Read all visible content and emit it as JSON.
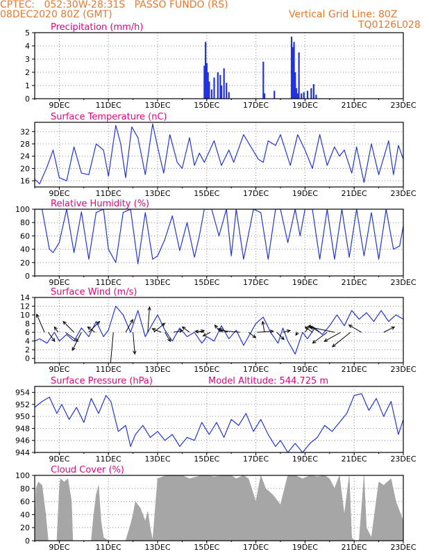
{
  "header": {
    "left_line1": "CPTEC:   052:30W-28:31S   PASSO FUNDO (RS)",
    "left_line2": "08DEC2020 80Z (GMT)",
    "right_line1": "Vertical Grid Line: 80Z",
    "right_line2": "TQ0126L028"
  },
  "colors": {
    "header": "#e8772e",
    "panel_title": "#e6007e",
    "series_line": "#2233dd",
    "precip_bar": "#2233dd",
    "cloud_fill": "#a6a6a6",
    "wind_arrow": "#000000"
  },
  "x_tick_labels": [
    "9DEC",
    "11DEC",
    "13DEC",
    "15DEC",
    "17DEC",
    "19DEC",
    "21DEC",
    "23DEC"
  ],
  "chart_data": [
    {
      "type": "bar",
      "title": "Precipitation (mm/h)",
      "xlim": [
        8.0,
        23.0
      ],
      "ylim": [
        0,
        5
      ],
      "yticks": [
        0,
        1,
        2,
        3,
        4,
        5
      ],
      "grid": true,
      "x": [
        14.9,
        14.95,
        15.0,
        15.05,
        15.1,
        15.2,
        15.3,
        15.45,
        15.55,
        15.6,
        15.7,
        15.8,
        15.9,
        17.3,
        17.35,
        17.75,
        18.45,
        18.5,
        18.55,
        18.6,
        18.65,
        18.7,
        18.75,
        18.85,
        18.95,
        19.1,
        19.25,
        19.35,
        19.45
      ],
      "values": [
        2.5,
        4.3,
        2.7,
        2.0,
        1.3,
        0.7,
        1.6,
        2.0,
        1.8,
        1.0,
        2.3,
        1.2,
        0.5,
        2.8,
        0.4,
        0.6,
        4.7,
        3.9,
        4.3,
        2.0,
        0.8,
        0.4,
        3.5,
        0.4,
        0.5,
        0.6,
        0.8,
        1.1,
        0.3
      ]
    },
    {
      "type": "line",
      "title": "Surface Temperature (nC)",
      "xlim": [
        8.0,
        23.0
      ],
      "ylim": [
        14,
        35
      ],
      "yticks": [
        16,
        20,
        24,
        28,
        32
      ],
      "grid": true,
      "x": [
        8.0,
        8.2,
        8.5,
        8.75,
        9.0,
        9.3,
        9.6,
        9.9,
        10.2,
        10.5,
        10.8,
        11.0,
        11.3,
        11.5,
        11.7,
        11.95,
        12.2,
        12.5,
        12.8,
        13.0,
        13.25,
        13.5,
        13.8,
        14.0,
        14.3,
        14.5,
        14.7,
        14.9,
        15.3,
        15.6,
        15.9,
        16.1,
        16.5,
        16.8,
        17.1,
        17.3,
        17.5,
        17.8,
        18.0,
        18.4,
        18.7,
        19.0,
        19.3,
        19.6,
        19.9,
        20.2,
        20.4,
        20.6,
        20.9,
        21.1,
        21.4,
        21.7,
        22.0,
        22.4,
        22.6,
        22.8,
        23.0
      ],
      "values": [
        16.5,
        15.0,
        20.5,
        26.0,
        17.0,
        16.0,
        27.0,
        18.5,
        18.0,
        28.0,
        26.0,
        17.5,
        34.0,
        28.0,
        17.0,
        33.5,
        30.0,
        18.0,
        34.5,
        27.0,
        18.5,
        31.0,
        22.0,
        20.0,
        30.0,
        21.0,
        25.0,
        22.0,
        29.0,
        21.0,
        26.0,
        22.0,
        31.0,
        27.0,
        23.0,
        22.0,
        29.0,
        27.5,
        31.0,
        21.0,
        31.0,
        26.0,
        20.0,
        31.0,
        21.0,
        27.0,
        24.0,
        26.0,
        18.5,
        27.0,
        15.5,
        28.0,
        18.0,
        29.0,
        18.0,
        27.5,
        23.0
      ]
    },
    {
      "type": "line",
      "title": "Relative Humidity (%)",
      "xlim": [
        8.0,
        23.0
      ],
      "ylim": [
        0,
        100
      ],
      "yticks": [
        0,
        20,
        40,
        60,
        80,
        100
      ],
      "grid": true,
      "x": [
        8.0,
        8.3,
        8.6,
        8.75,
        9.0,
        9.3,
        9.6,
        9.9,
        10.2,
        10.5,
        10.8,
        11.0,
        11.3,
        11.6,
        11.9,
        12.2,
        12.5,
        12.8,
        13.0,
        13.3,
        13.6,
        13.9,
        14.2,
        14.5,
        14.7,
        14.9,
        15.2,
        15.5,
        15.8,
        16.0,
        16.2,
        16.5,
        16.9,
        17.2,
        17.5,
        17.8,
        18.0,
        18.3,
        18.6,
        18.8,
        19.0,
        19.3,
        19.6,
        19.9,
        20.2,
        20.5,
        20.8,
        21.1,
        21.4,
        21.7,
        22.0,
        22.3,
        22.6,
        22.85,
        23.0
      ],
      "values": [
        100,
        100,
        40,
        35,
        50,
        100,
        35,
        96,
        25,
        95,
        100,
        40,
        20,
        95,
        100,
        18,
        95,
        25,
        30,
        55,
        90,
        38,
        80,
        28,
        60,
        100,
        100,
        60,
        100,
        30,
        100,
        25,
        100,
        95,
        25,
        100,
        100,
        50,
        100,
        60,
        100,
        100,
        25,
        100,
        25,
        100,
        28,
        100,
        30,
        95,
        25,
        100,
        40,
        45,
        75
      ]
    },
    {
      "type": "line",
      "title": "Surface Wind (m/s)",
      "xlim": [
        8.0,
        23.0
      ],
      "ylim": [
        -1,
        14
      ],
      "yticks": [
        0,
        2,
        4,
        6,
        8,
        10,
        12,
        14
      ],
      "grid": true,
      "x": [
        8.0,
        8.2,
        8.5,
        8.8,
        9.0,
        9.3,
        9.6,
        9.9,
        10.2,
        10.5,
        10.8,
        11.0,
        11.3,
        11.6,
        11.9,
        12.2,
        12.5,
        12.8,
        13.0,
        13.3,
        13.6,
        13.9,
        14.2,
        14.5,
        14.8,
        15.0,
        15.3,
        15.6,
        15.9,
        16.2,
        16.5,
        16.8,
        17.0,
        17.3,
        17.6,
        17.9,
        18.1,
        18.3,
        18.6,
        18.9,
        19.1,
        19.4,
        19.7,
        20.0,
        20.3,
        20.6,
        20.9,
        21.2,
        21.5,
        21.8,
        22.1,
        22.4,
        22.7,
        23.0
      ],
      "values": [
        4.0,
        4.5,
        3.5,
        6.0,
        4.0,
        5.5,
        4.0,
        7.0,
        5.0,
        8.5,
        5.0,
        6.5,
        12.0,
        10.0,
        6.0,
        11.0,
        5.0,
        8.0,
        10.0,
        6.5,
        4.0,
        7.0,
        5.0,
        6.0,
        3.5,
        5.0,
        4.0,
        7.5,
        4.5,
        6.5,
        3.0,
        6.0,
        8.0,
        9.5,
        6.0,
        3.5,
        7.0,
        4.0,
        1.0,
        6.0,
        4.5,
        7.0,
        5.5,
        7.5,
        10.0,
        7.5,
        11.0,
        9.0,
        10.5,
        8.5,
        11.0,
        8.5,
        10.0,
        9.0
      ]
    },
    {
      "type": "line",
      "title": "Surface Pressure (hPa)",
      "subtitle": "Model Altitude: 544.725 m",
      "xlim": [
        8.0,
        23.0
      ],
      "ylim": [
        944,
        955
      ],
      "yticks": [
        944,
        946,
        948,
        950,
        952,
        954
      ],
      "grid": true,
      "x": [
        8.0,
        8.3,
        8.6,
        8.9,
        9.1,
        9.4,
        9.7,
        10.0,
        10.3,
        10.6,
        10.9,
        11.1,
        11.4,
        11.7,
        11.9,
        12.1,
        12.4,
        12.7,
        13.0,
        13.3,
        13.6,
        13.9,
        14.2,
        14.5,
        14.8,
        15.1,
        15.4,
        15.7,
        16.0,
        16.3,
        16.6,
        16.9,
        17.2,
        17.5,
        17.8,
        18.0,
        18.3,
        18.6,
        18.9,
        19.2,
        19.5,
        19.8,
        20.1,
        20.4,
        20.7,
        21.0,
        21.3,
        21.6,
        21.9,
        22.2,
        22.5,
        22.8,
        23.0
      ],
      "values": [
        951.5,
        952.5,
        953.2,
        950.5,
        952.0,
        949.5,
        951.5,
        949.0,
        953.0,
        950.5,
        953.5,
        952.5,
        947.5,
        948.5,
        945.0,
        947.0,
        948.5,
        946.5,
        947.5,
        946.0,
        947.0,
        945.0,
        946.5,
        946.0,
        949.0,
        947.0,
        949.0,
        946.5,
        949.5,
        948.5,
        950.5,
        947.5,
        949.5,
        947.0,
        945.0,
        946.0,
        944.0,
        945.5,
        944.0,
        945.5,
        946.5,
        948.5,
        947.5,
        949.0,
        950.5,
        953.5,
        953.8,
        951.0,
        953.0,
        950.0,
        952.5,
        947.0,
        949.5
      ]
    },
    {
      "type": "area",
      "title": "Cloud Cover (%)",
      "xlim": [
        8.0,
        23.0
      ],
      "ylim": [
        0,
        100
      ],
      "yticks": [
        0,
        20,
        40,
        60,
        80,
        100
      ],
      "grid": true,
      "x": [
        8.0,
        8.05,
        8.15,
        8.3,
        8.45,
        8.55,
        8.6,
        8.9,
        9.0,
        9.05,
        9.2,
        9.35,
        9.5,
        9.55,
        10.3,
        10.4,
        10.5,
        10.6,
        10.7,
        10.8,
        11.0,
        11.1,
        11.7,
        11.9,
        12.0,
        12.1,
        12.3,
        12.5,
        12.6,
        12.7,
        12.8,
        13.0,
        13.2,
        13.4,
        13.6,
        14.0,
        14.3,
        14.8,
        15.0,
        15.3,
        15.7,
        16.0,
        16.2,
        16.5,
        16.7,
        17.0,
        17.2,
        17.4,
        17.7,
        18.0,
        18.3,
        18.6,
        18.9,
        19.2,
        19.5,
        19.8,
        20.0,
        20.2,
        20.4,
        20.6,
        20.8,
        20.9,
        21.0,
        21.2,
        21.4,
        21.5,
        21.7,
        22.0,
        22.2,
        22.5,
        22.7,
        23.0
      ],
      "values": [
        5,
        80,
        90,
        85,
        40,
        0,
        0,
        0,
        80,
        95,
        90,
        95,
        60,
        0,
        0,
        40,
        70,
        85,
        30,
        5,
        0,
        0,
        0,
        25,
        40,
        60,
        50,
        30,
        45,
        20,
        0,
        95,
        98,
        100,
        100,
        100,
        95,
        100,
        100,
        98,
        100,
        100,
        95,
        100,
        95,
        60,
        100,
        80,
        70,
        55,
        100,
        100,
        95,
        100,
        98,
        100,
        95,
        80,
        100,
        40,
        100,
        5,
        0,
        0,
        100,
        20,
        5,
        90,
        85,
        95,
        60,
        30
      ]
    }
  ],
  "wind_vectors": [
    {
      "x": 8.4,
      "u": -2.2,
      "v": 5.0
    },
    {
      "x": 8.55,
      "u": 1.8,
      "v": -2.5
    },
    {
      "x": 8.95,
      "u": -1.0,
      "v": 1.5
    },
    {
      "x": 9.25,
      "u": 3.5,
      "v": -2.5
    },
    {
      "x": 9.6,
      "u": -3.0,
      "v": 3.0
    },
    {
      "x": 9.9,
      "u": -2.5,
      "v": -5.0
    },
    {
      "x": 10.2,
      "u": 3.0,
      "v": 3.0
    },
    {
      "x": 10.45,
      "u": -2.0,
      "v": 1.5
    },
    {
      "x": 11.2,
      "u": -1.0,
      "v": -11.0
    },
    {
      "x": 11.7,
      "u": 2.0,
      "v": 3.5
    },
    {
      "x": 12.0,
      "u": 0.5,
      "v": -6.0
    },
    {
      "x": 12.6,
      "u": 0.5,
      "v": 7.0
    },
    {
      "x": 12.85,
      "u": 3.0,
      "v": 2.5
    },
    {
      "x": 13.15,
      "u": -2.5,
      "v": 1.0
    },
    {
      "x": 13.3,
      "u": 1.5,
      "v": -2.5
    },
    {
      "x": 13.65,
      "u": 2.5,
      "v": 0.5
    },
    {
      "x": 14.3,
      "u": -2.0,
      "v": 1.5
    },
    {
      "x": 14.6,
      "u": 2.0,
      "v": 0.5
    },
    {
      "x": 14.9,
      "u": -2.5,
      "v": 0.3
    },
    {
      "x": 15.15,
      "u": -2.0,
      "v": -1.0
    },
    {
      "x": 15.55,
      "u": -1.5,
      "v": 2.0
    },
    {
      "x": 15.85,
      "u": -2.5,
      "v": 1.0
    },
    {
      "x": 16.35,
      "u": -5.5,
      "v": 0.5
    },
    {
      "x": 16.7,
      "u": 2.0,
      "v": -1.5
    },
    {
      "x": 17.05,
      "u": 4.5,
      "v": 0.3
    },
    {
      "x": 17.35,
      "u": -0.5,
      "v": 3.0
    },
    {
      "x": 17.85,
      "u": 2.0,
      "v": -2.0
    },
    {
      "x": 18.1,
      "u": 2.0,
      "v": 0.5
    },
    {
      "x": 18.7,
      "u": -0.5,
      "v": -0.8
    },
    {
      "x": 19.0,
      "u": 1.5,
      "v": 2.0
    },
    {
      "x": 19.3,
      "u": -2.0,
      "v": 1.5
    },
    {
      "x": 19.6,
      "u": -2.5,
      "v": 1.5
    },
    {
      "x": 19.9,
      "u": -4.0,
      "v": -3.0
    },
    {
      "x": 20.2,
      "u": -7.0,
      "v": 1.5
    },
    {
      "x": 20.45,
      "u": -4.5,
      "v": -2.5
    },
    {
      "x": 20.85,
      "u": -5.0,
      "v": -4.0
    },
    {
      "x": 21.3,
      "u": -3.5,
      "v": 2.0
    },
    {
      "x": 22.2,
      "u": 3.0,
      "v": 1.5
    }
  ]
}
